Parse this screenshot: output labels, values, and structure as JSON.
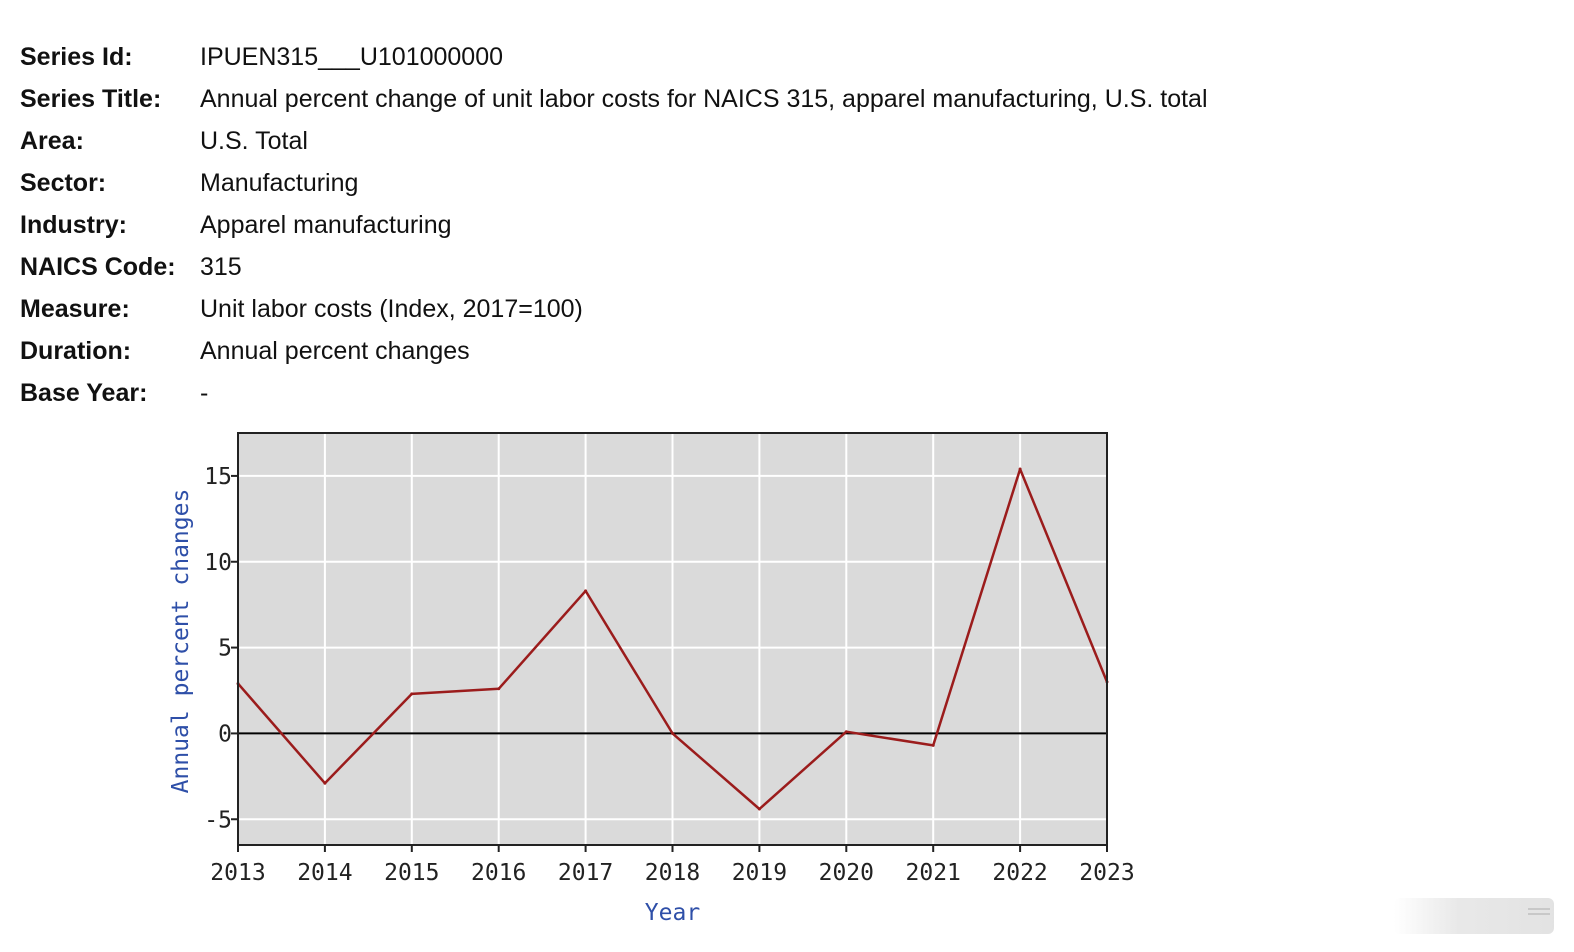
{
  "metadata": [
    {
      "label": "Series Id:",
      "value": "IPUEN315___U101000000"
    },
    {
      "label": "Series Title:",
      "value": "Annual percent change of unit labor costs for NAICS 315, apparel manufacturing, U.S. total"
    },
    {
      "label": "Area:",
      "value": "U.S. Total"
    },
    {
      "label": "Sector:",
      "value": "Manufacturing"
    },
    {
      "label": "Industry:",
      "value": "Apparel manufacturing"
    },
    {
      "label": "NAICS Code:",
      "value": "315"
    },
    {
      "label": "Measure:",
      "value": "Unit labor costs (Index, 2017=100)"
    },
    {
      "label": "Duration:",
      "value": "Annual percent changes"
    },
    {
      "label": "Base Year:",
      "value": "-"
    }
  ],
  "chart_data": {
    "type": "line",
    "title": "",
    "xlabel": "Year",
    "ylabel": "Annual percent changes",
    "x": [
      2013,
      2014,
      2015,
      2016,
      2017,
      2018,
      2019,
      2020,
      2021,
      2022,
      2023
    ],
    "xticks": [
      "2013",
      "2014",
      "2015",
      "2016",
      "2017",
      "2018",
      "2019",
      "2020",
      "2021",
      "2022",
      "2023"
    ],
    "yticks": [
      -5,
      0,
      5,
      10,
      15
    ],
    "xlim": [
      2013,
      2023
    ],
    "ylim": [
      -6.5,
      17.5
    ],
    "grid": true,
    "zero_line": true,
    "series": [
      {
        "values": [
          2.9,
          -2.9,
          2.3,
          2.6,
          8.3,
          0.0,
          -4.4,
          0.1,
          -0.7,
          15.4,
          3.0
        ]
      }
    ],
    "colors": {
      "line": "#9b1c1c",
      "plot_bg": "#dadada",
      "grid": "#ffffff",
      "axis_title": "#2e4fa8",
      "frame": "#222222"
    }
  }
}
